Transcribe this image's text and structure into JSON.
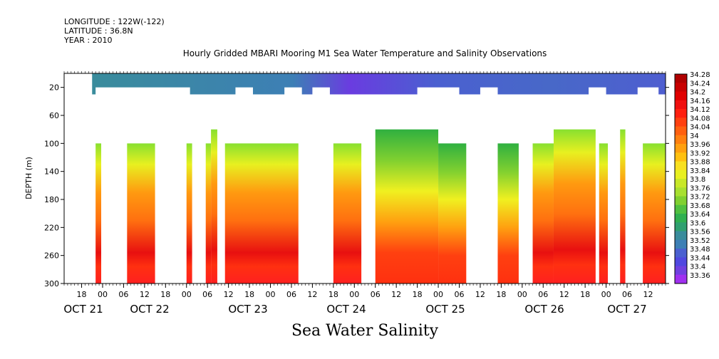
{
  "header": {
    "longitude": "LONGITUDE : 122W(-122)",
    "latitude": "LATITUDE : 36.8N",
    "year": "YEAR : 2010"
  },
  "title": "Hourly Gridded MBARI Mooring M1 Sea Water Temperature and Salinity Observations",
  "bottom_title": "Sea Water Salinity",
  "chart_data": {
    "type": "heatmap",
    "title": "Hourly Gridded MBARI Mooring M1 Sea Water Temperature and Salinity Observations",
    "variable": "Sea Water Salinity",
    "ylabel": "DEPTH (m)",
    "y_ticks": [
      20,
      60,
      100,
      140,
      180,
      220,
      260,
      300
    ],
    "ylim": [
      0,
      300
    ],
    "y_inverted": true,
    "x_hour_ticks": [
      "18",
      "00",
      "06",
      "12",
      "18",
      "00",
      "06",
      "12",
      "18",
      "00",
      "06",
      "12",
      "18",
      "00",
      "06",
      "12",
      "18",
      "00",
      "06",
      "12",
      "18",
      "00",
      "06",
      "12",
      "18",
      "00",
      "06",
      "12"
    ],
    "x_day_labels": [
      "OCT 21",
      "OCT 22",
      "OCT 23",
      "OCT 24",
      "OCT 25",
      "OCT 26",
      "OCT 27"
    ],
    "x_range_hours": [
      "2010-10-20T13:00",
      "2010-10-27T17:00"
    ],
    "colorbar": {
      "labels": [
        "34.28",
        "34.24",
        "34.2",
        "34.16",
        "34.12",
        "34.08",
        "34.04",
        "34",
        "33.96",
        "33.92",
        "33.88",
        "33.84",
        "33.8",
        "33.76",
        "33.72",
        "33.68",
        "33.64",
        "33.6",
        "33.56",
        "33.52",
        "33.48",
        "33.44",
        "33.4",
        "33.36"
      ],
      "min": 33.36,
      "max": 34.28
    },
    "depth_levels": [
      {
        "depth_range": [
          10,
          30
        ],
        "salinity_approx": 33.55
      },
      {
        "depth_range": [
          80,
          100
        ],
        "salinity_approx": 33.72
      },
      {
        "depth_range": [
          100,
          140
        ],
        "salinity_approx": 33.9
      },
      {
        "depth_range": [
          140,
          200
        ],
        "salinity_approx": 34.08
      },
      {
        "depth_range": [
          200,
          240
        ],
        "salinity_approx": 34.15
      },
      {
        "depth_range": [
          240,
          280
        ],
        "salinity_approx": 34.22
      },
      {
        "depth_range": [
          280,
          300
        ],
        "salinity_approx": 34.2
      }
    ]
  }
}
